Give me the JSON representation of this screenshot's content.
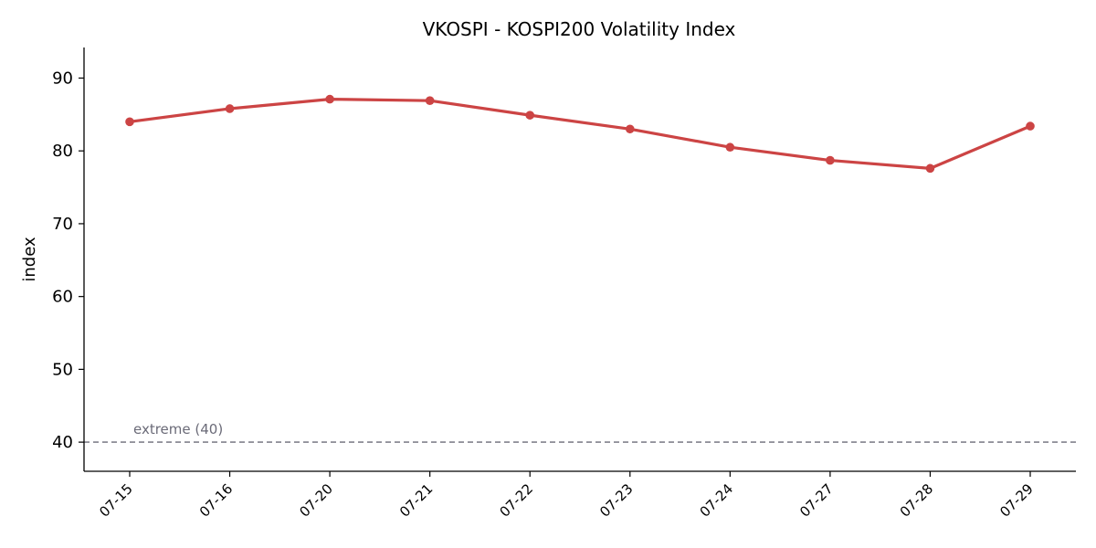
{
  "chart_data": {
    "type": "line",
    "title": "VKOSPI - KOSPI200 Volatility Index",
    "xlabel": "",
    "ylabel": "index",
    "categories": [
      "07-15",
      "07-16",
      "07-20",
      "07-21",
      "07-22",
      "07-23",
      "07-24",
      "07-27",
      "07-28",
      "07-29"
    ],
    "series": [
      {
        "values": [
          84.0,
          85.8,
          87.1,
          86.9,
          84.9,
          83.0,
          80.5,
          78.7,
          77.6,
          83.4
        ],
        "color": "#cc4444"
      }
    ],
    "ylim": [
      36,
      94.2
    ],
    "yticks": [
      40,
      50,
      60,
      70,
      80,
      90
    ],
    "reference_line": {
      "value": 40,
      "label": "extreme (40)",
      "color": "#6b6b78",
      "style": "dashed"
    },
    "grid": false,
    "legend": "none"
  }
}
